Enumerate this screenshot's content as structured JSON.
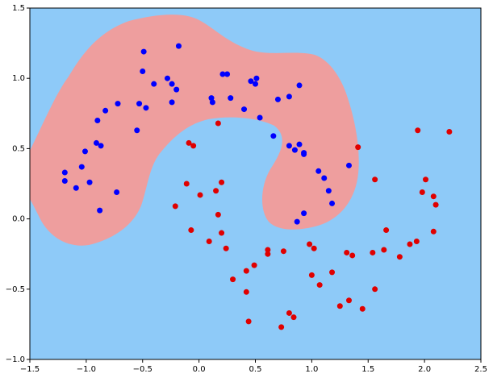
{
  "chart_data": {
    "type": "scatter",
    "xlim": [
      -1.5,
      2.5
    ],
    "ylim": [
      -1.0,
      1.5
    ],
    "xticks": [
      {
        "value": -1.5,
        "label": "−1.5"
      },
      {
        "value": -1.0,
        "label": "−1.0"
      },
      {
        "value": -0.5,
        "label": "−0.5"
      },
      {
        "value": 0.0,
        "label": "0.0"
      },
      {
        "value": 0.5,
        "label": "0.5"
      },
      {
        "value": 1.0,
        "label": "1.0"
      },
      {
        "value": 1.5,
        "label": "1.5"
      },
      {
        "value": 2.0,
        "label": "2.0"
      },
      {
        "value": 2.5,
        "label": "2.5"
      }
    ],
    "yticks": [
      {
        "value": -1.0,
        "label": "−1.0"
      },
      {
        "value": -0.5,
        "label": "−0.5"
      },
      {
        "value": 0.0,
        "label": "0.0"
      },
      {
        "value": 0.5,
        "label": "0.5"
      },
      {
        "value": 1.0,
        "label": "1.0"
      },
      {
        "value": 1.5,
        "label": "1.5"
      }
    ],
    "series": [
      {
        "color": "#0000ff",
        "x": [
          -1.19,
          -1.19,
          -1.09,
          -1.04,
          -1.01,
          -0.97,
          -0.91,
          -0.9,
          -0.87,
          -0.88,
          -0.83,
          -0.73,
          -0.72,
          -0.55,
          -0.53,
          -0.5,
          -0.49,
          -0.47,
          -0.4,
          -0.28,
          -0.24,
          -0.24,
          -0.2,
          -0.18,
          0.11,
          0.12,
          0.21,
          0.25,
          0.28,
          0.4,
          0.46,
          0.51,
          0.5,
          0.54,
          0.66,
          0.7,
          0.8,
          0.8,
          0.85,
          0.89,
          0.89,
          0.93,
          0.93,
          0.87,
          0.93,
          1.06,
          1.11,
          1.15,
          1.18,
          1.33
        ],
        "y": [
          0.33,
          0.27,
          0.22,
          0.37,
          0.48,
          0.26,
          0.54,
          0.7,
          0.52,
          0.06,
          0.77,
          0.19,
          0.82,
          0.63,
          0.82,
          1.05,
          1.19,
          0.79,
          0.96,
          1.0,
          0.96,
          0.83,
          0.92,
          1.23,
          0.86,
          0.83,
          1.03,
          1.03,
          0.86,
          0.78,
          0.98,
          1.0,
          0.96,
          0.72,
          0.59,
          0.85,
          0.87,
          0.52,
          0.49,
          0.53,
          0.95,
          0.47,
          0.46,
          -0.02,
          0.04,
          0.34,
          0.29,
          0.2,
          0.11,
          0.38
        ]
      },
      {
        "color": "#e00000",
        "x": [
          0.17,
          -0.09,
          -0.05,
          -0.11,
          -0.21,
          -0.07,
          0.01,
          0.15,
          0.2,
          0.17,
          0.2,
          0.24,
          0.09,
          0.3,
          0.42,
          0.49,
          0.42,
          0.44,
          0.61,
          0.61,
          0.75,
          0.73,
          0.8,
          0.84,
          0.98,
          1.02,
          1.0,
          1.07,
          1.18,
          1.25,
          1.31,
          1.33,
          1.36,
          1.45,
          1.41,
          1.54,
          1.56,
          1.56,
          1.64,
          1.66,
          1.78,
          1.87,
          1.93,
          1.94,
          1.98,
          2.01,
          2.08,
          2.08,
          2.1,
          2.22
        ],
        "y": [
          0.68,
          0.54,
          0.52,
          0.25,
          0.09,
          -0.08,
          0.17,
          0.2,
          0.26,
          0.03,
          -0.1,
          -0.21,
          -0.16,
          -0.43,
          -0.37,
          -0.33,
          -0.52,
          -0.73,
          -0.25,
          -0.22,
          -0.23,
          -0.77,
          -0.67,
          -0.7,
          -0.18,
          -0.21,
          -0.4,
          -0.47,
          -0.38,
          -0.62,
          -0.24,
          -0.58,
          -0.26,
          -0.64,
          0.51,
          -0.24,
          0.28,
          -0.5,
          -0.22,
          -0.08,
          -0.27,
          -0.18,
          -0.16,
          0.63,
          0.19,
          0.28,
          0.16,
          -0.09,
          0.1,
          0.62
        ]
      }
    ]
  }
}
